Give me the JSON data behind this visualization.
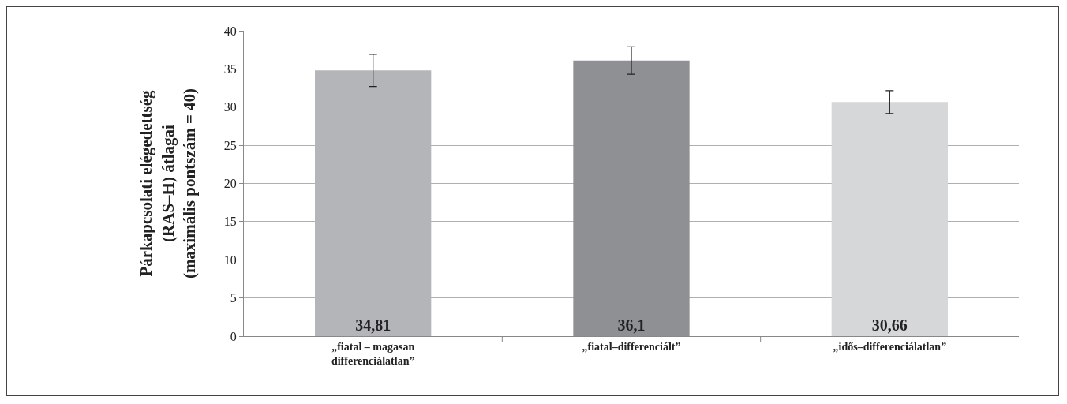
{
  "chart_data": {
    "type": "bar",
    "ylabel": "Párkapcsolati elégedettség\n(RAS–H) átlagai\n(maximális pontszám = 40)",
    "categories": [
      "„fiatal – magasan\ndifferenciálatlan”",
      "„fiatal–differenciált”",
      "„idős–differenciálatlan”"
    ],
    "values": [
      34.81,
      36.1,
      30.66
    ],
    "colors": [
      "#b4b5b8",
      "#8f9093",
      "#d6d7d8"
    ],
    "errors": [
      2.1,
      1.8,
      1.5
    ],
    "value_labels": [
      "34,81",
      "36,1",
      "30,66"
    ],
    "ylim": [
      0,
      40
    ],
    "yticks": [
      0,
      5,
      10,
      15,
      20,
      25,
      30,
      35,
      40
    ],
    "grid": "y"
  }
}
